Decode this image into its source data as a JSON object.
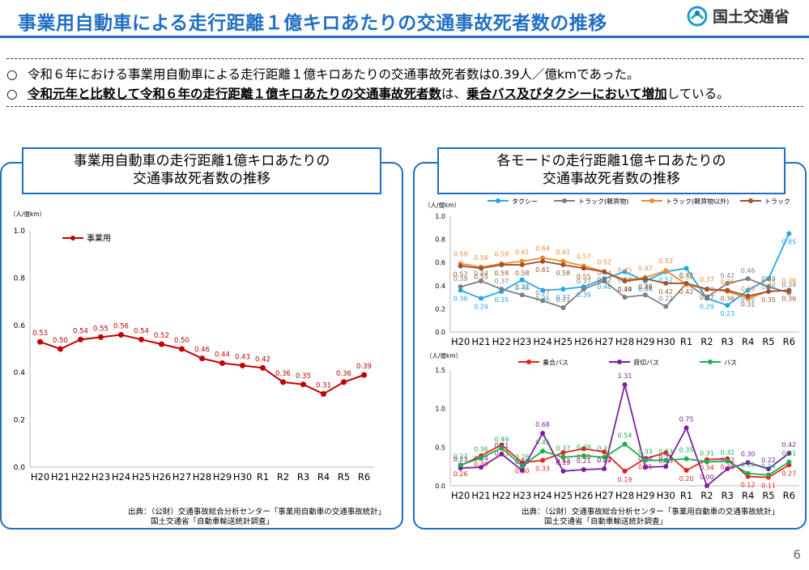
{
  "header": {
    "title": "事業用自動車による走行距離１億キロあたりの交通事故死者数の推移",
    "logo_text": "国土交通省"
  },
  "summary": {
    "mark1": "○",
    "line1": "令和６年における事業用自動車による走行距離１億キロあたりの交通事故死者数は0.39人／億kmであった。",
    "mark2": "○",
    "line2_a": "令和元年と比較して令和６年の走行距離１億キロあたりの交通事故死者数",
    "line2_b": "は、",
    "line2_c": "乗合バス及びタクシーにおいて増加",
    "line2_d": "している。"
  },
  "left_panel": {
    "title_line1": "事業用自動車の走行距離1億キロあたりの",
    "title_line2": "交通事故死者数の推移",
    "source_line1": "出典：（公財）交通事故総合分析センター「事業用自動車の交通事故統計」",
    "source_line2": "国土交通省「自動車輸送統計調査」"
  },
  "right_panel": {
    "title_line1": "各モードの走行距離1億キロあたりの",
    "title_line2": "交通事故死者数の推移",
    "source_line1": "出典：（公財）交通事故総合分析センター「事業用自動車の交通事故統計」",
    "source_line2": "国土交通省「自動車輸送統計調査」"
  },
  "page_number": "6",
  "chart_data": [
    {
      "id": "c1",
      "type": "line",
      "unit": "（人/億km）",
      "categories": [
        "H20",
        "H21",
        "H22",
        "H23",
        "H24",
        "H25",
        "H26",
        "H27",
        "H28",
        "H29",
        "H30",
        "R1",
        "R2",
        "R3",
        "R4",
        "R5",
        "R6"
      ],
      "ylim": [
        0,
        1.0
      ],
      "yticks": [
        0.0,
        0.2,
        0.4,
        0.6,
        0.8,
        1.0
      ],
      "legend_position": "top-left",
      "series": [
        {
          "name": "事業用",
          "color": "#c00000",
          "values": [
            0.53,
            0.5,
            0.54,
            0.55,
            0.56,
            0.54,
            0.52,
            0.5,
            0.46,
            0.44,
            0.43,
            0.42,
            0.36,
            0.35,
            0.31,
            0.36,
            0.39
          ]
        }
      ]
    },
    {
      "id": "c2",
      "type": "line",
      "unit": "（人/億km）",
      "categories": [
        "H20",
        "H21",
        "H22",
        "H23",
        "H24",
        "H25",
        "H26",
        "H27",
        "H28",
        "H29",
        "H30",
        "R1",
        "R2",
        "R3",
        "R4",
        "R5",
        "R6"
      ],
      "ylim": [
        0,
        1.0
      ],
      "yticks": [
        0.0,
        0.2,
        0.4,
        0.6,
        0.8,
        1.0
      ],
      "legend_position": "top",
      "series": [
        {
          "name": "タクシー",
          "color": "#1fa8e8",
          "values": [
            0.36,
            0.29,
            0.35,
            0.45,
            0.36,
            0.37,
            0.39,
            0.46,
            0.52,
            0.44,
            0.52,
            0.55,
            0.29,
            0.23,
            0.36,
            0.46,
            0.85
          ]
        },
        {
          "name": "トラック(軽貨物)",
          "color": "#7f7f7f",
          "values": [
            0.39,
            0.44,
            0.37,
            0.32,
            0.27,
            0.21,
            0.37,
            0.44,
            0.3,
            0.32,
            0.22,
            0.42,
            0.3,
            0.42,
            0.46,
            0.39,
            0.34
          ]
        },
        {
          "name": "トラック(軽貨物以外)",
          "color": "#f08a30",
          "values": [
            0.59,
            0.56,
            0.59,
            0.61,
            0.64,
            0.61,
            0.57,
            0.52,
            0.45,
            0.47,
            0.53,
            0.41,
            0.37,
            0.35,
            0.29,
            0.35,
            0.36
          ]
        },
        {
          "name": "トラック",
          "color": "#a0522d",
          "values": [
            0.57,
            0.55,
            0.58,
            0.58,
            0.61,
            0.58,
            0.55,
            0.52,
            0.44,
            0.46,
            0.42,
            0.42,
            0.37,
            0.36,
            0.31,
            0.35,
            0.36
          ]
        }
      ]
    },
    {
      "id": "c3",
      "type": "line",
      "unit": "（人/億km）",
      "categories": [
        "H20",
        "H21",
        "H22",
        "H23",
        "H24",
        "H25",
        "H26",
        "H27",
        "H28",
        "H29",
        "H30",
        "R1",
        "R2",
        "R3",
        "R4",
        "R5",
        "R6"
      ],
      "ylim": [
        0,
        1.5
      ],
      "yticks": [
        0.0,
        0.5,
        1.0,
        1.5
      ],
      "legend_position": "top",
      "series": [
        {
          "name": "乗合バス",
          "color": "#e8201c",
          "values": [
            0.26,
            0.39,
            0.53,
            0.3,
            0.33,
            0.43,
            0.48,
            0.44,
            0.19,
            0.35,
            0.43,
            0.2,
            0.34,
            0.35,
            0.12,
            0.11,
            0.27
          ]
        },
        {
          "name": "貸切バス",
          "color": "#7a1fa0",
          "values": [
            0.23,
            0.24,
            0.41,
            0.2,
            0.68,
            0.19,
            0.21,
            0.22,
            1.31,
            0.24,
            0.25,
            0.75,
            0.0,
            0.22,
            0.3,
            0.22,
            0.42
          ]
        },
        {
          "name": "バス",
          "color": "#18b04c",
          "values": [
            0.27,
            0.36,
            0.49,
            0.26,
            0.45,
            0.37,
            0.39,
            0.37,
            0.54,
            0.33,
            0.33,
            0.35,
            0.31,
            0.32,
            0.16,
            0.14,
            0.31
          ]
        }
      ]
    }
  ]
}
